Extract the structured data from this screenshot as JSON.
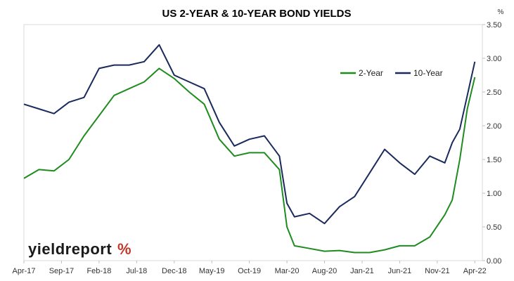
{
  "chart_data": {
    "type": "line",
    "title": "US 2-YEAR & 10-YEAR BOND YIELDS",
    "ylabel": "%",
    "xlabel": "",
    "ylim": [
      0,
      3.5
    ],
    "yticks": [
      "0.00",
      "0.50",
      "1.00",
      "1.50",
      "2.00",
      "2.50",
      "3.00",
      "3.50"
    ],
    "xticks": [
      "Apr-17",
      "Sep-17",
      "Feb-18",
      "Jul-18",
      "Dec-18",
      "May-19",
      "Oct-19",
      "Mar-20",
      "Aug-20",
      "Jan-21",
      "Jun-21",
      "Nov-21",
      "Apr-22"
    ],
    "grid": false,
    "legend_position": "top-right",
    "brand": {
      "name": "yieldreport",
      "symbol": "%"
    },
    "series": [
      {
        "name": "2-Year",
        "color": "#1e8c1e",
        "x": [
          "2017-04",
          "2017-06",
          "2017-08",
          "2017-10",
          "2017-12",
          "2018-02",
          "2018-04",
          "2018-06",
          "2018-08",
          "2018-10",
          "2018-12",
          "2019-02",
          "2019-04",
          "2019-06",
          "2019-08",
          "2019-10",
          "2019-12",
          "2020-02",
          "2020-03",
          "2020-04",
          "2020-06",
          "2020-08",
          "2020-10",
          "2020-12",
          "2021-02",
          "2021-04",
          "2021-06",
          "2021-08",
          "2021-10",
          "2021-12",
          "2022-01",
          "2022-02",
          "2022-03",
          "2022-04"
        ],
        "values": [
          1.22,
          1.35,
          1.33,
          1.5,
          1.85,
          2.15,
          2.45,
          2.55,
          2.65,
          2.85,
          2.7,
          2.5,
          2.32,
          1.8,
          1.55,
          1.6,
          1.6,
          1.35,
          0.5,
          0.22,
          0.18,
          0.14,
          0.15,
          0.12,
          0.12,
          0.16,
          0.22,
          0.22,
          0.35,
          0.68,
          0.9,
          1.5,
          2.25,
          2.72
        ]
      },
      {
        "name": "10-Year",
        "color": "#1b2a5c",
        "x": [
          "2017-04",
          "2017-06",
          "2017-08",
          "2017-10",
          "2017-12",
          "2018-02",
          "2018-04",
          "2018-06",
          "2018-08",
          "2018-10",
          "2018-12",
          "2019-02",
          "2019-04",
          "2019-06",
          "2019-08",
          "2019-10",
          "2019-12",
          "2020-02",
          "2020-03",
          "2020-04",
          "2020-06",
          "2020-08",
          "2020-10",
          "2020-12",
          "2021-02",
          "2021-04",
          "2021-06",
          "2021-08",
          "2021-10",
          "2021-12",
          "2022-01",
          "2022-02",
          "2022-03",
          "2022-04"
        ],
        "values": [
          2.32,
          2.25,
          2.18,
          2.35,
          2.42,
          2.85,
          2.9,
          2.9,
          2.95,
          3.2,
          2.75,
          2.65,
          2.55,
          2.05,
          1.7,
          1.8,
          1.85,
          1.55,
          0.85,
          0.65,
          0.7,
          0.55,
          0.8,
          0.95,
          1.3,
          1.65,
          1.45,
          1.28,
          1.55,
          1.45,
          1.75,
          1.95,
          2.45,
          2.95
        ]
      }
    ]
  }
}
